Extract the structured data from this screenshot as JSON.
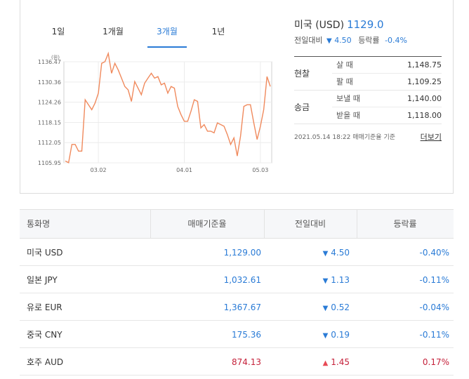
{
  "tabs": [
    "1일",
    "1개월",
    "3개월",
    "1년"
  ],
  "active_tab": "3개월",
  "chart_data": {
    "type": "line",
    "ylabel": "(원)",
    "yticks": [
      1136.47,
      1130.36,
      1124.26,
      1118.15,
      1112.05,
      1105.95
    ],
    "xticks": [
      "03.02",
      "04.01",
      "05.03"
    ],
    "ylim": [
      1105.95,
      1136.47
    ],
    "grid": true,
    "line_color": "#f08a5d",
    "values": [
      1106.5,
      1106.0,
      1111.5,
      1111.5,
      1109.5,
      1109.5,
      1125.0,
      1123.5,
      1122.0,
      1124.0,
      1127.0,
      1136.0,
      1136.5,
      1139.0,
      1133.0,
      1136.0,
      1134.0,
      1131.5,
      1129.0,
      1128.0,
      1124.5,
      1130.5,
      1128.5,
      1126.5,
      1130.0,
      1131.5,
      1133.0,
      1131.5,
      1132.0,
      1129.5,
      1130.0,
      1127.0,
      1129.0,
      1128.5,
      1123.0,
      1120.5,
      1118.5,
      1118.5,
      1121.5,
      1125.0,
      1124.5,
      1116.5,
      1117.5,
      1115.5,
      1115.5,
      1115.0,
      1118.0,
      1117.5,
      1117.0,
      1114.5,
      1111.5,
      1113.5,
      1108.0,
      1114.0,
      1123.0,
      1123.5,
      1123.5,
      1118.0,
      1113.0,
      1117.0,
      1122.0,
      1132.0,
      1129.0
    ]
  },
  "info": {
    "name": "미국 (USD)",
    "price": "1129.0",
    "change_label": "전일대비",
    "change_value": "4.50",
    "rate_label": "등락률",
    "rate_value": "-0.4%",
    "groups": [
      {
        "label": "현찰",
        "rows": [
          {
            "k": "살 때",
            "v": "1,148.75"
          },
          {
            "k": "팔 때",
            "v": "1,109.25"
          }
        ]
      },
      {
        "label": "송금",
        "rows": [
          {
            "k": "보낼 때",
            "v": "1,140.00"
          },
          {
            "k": "받을 때",
            "v": "1,118.00"
          }
        ]
      }
    ],
    "footnote": "2021.05.14 18:22 매매기준율 기준",
    "more_label": "더보기"
  },
  "table": {
    "headers": [
      "통화명",
      "매매기준율",
      "전일대비",
      "등락률"
    ],
    "rows": [
      {
        "name": "미국 USD",
        "rate": "1,129.00",
        "dir": "down",
        "change": "4.50",
        "pct": "-0.40%"
      },
      {
        "name": "일본 JPY",
        "rate": "1,032.61",
        "dir": "down",
        "change": "1.13",
        "pct": "-0.11%"
      },
      {
        "name": "유로 EUR",
        "rate": "1,367.67",
        "dir": "down",
        "change": "0.52",
        "pct": "-0.04%"
      },
      {
        "name": "중국 CNY",
        "rate": "175.36",
        "dir": "down",
        "change": "0.19",
        "pct": "-0.11%"
      },
      {
        "name": "호주 AUD",
        "rate": "874.13",
        "dir": "up",
        "change": "1.45",
        "pct": "0.17%"
      }
    ]
  },
  "colors": {
    "accent": "#2a7bd6",
    "up": "#c5213a",
    "down": "#2a7bd6"
  }
}
